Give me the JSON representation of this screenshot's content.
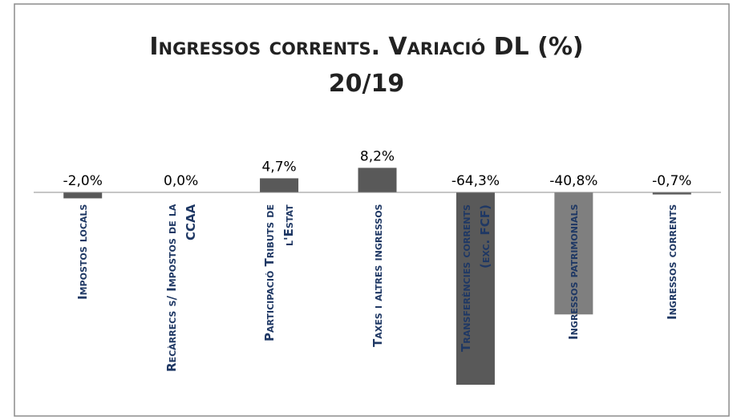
{
  "chart_data": {
    "type": "bar",
    "title": "Ingressos corrents. Variació DL (%) 20/19",
    "categories": [
      "Impostos locals",
      "Recàrrecs s/ Impostos de la CCAA",
      "Participació Tributs de l'Estat",
      "Taxes i altres ingressos",
      "Transferències corrents (exc. FCF)",
      "Ingressos patrimonials",
      "Ingressos corrents"
    ],
    "values": [
      -2.0,
      0.0,
      4.7,
      8.2,
      -64.3,
      -40.8,
      -0.7
    ],
    "value_labels": [
      "-2,0%",
      "0,0%",
      "4,7%",
      "8,2%",
      "-64,3%",
      "-40,8%",
      "-0,7%"
    ],
    "colors": [
      "#595959",
      "#595959",
      "#595959",
      "#595959",
      "#595959",
      "#7f7f7f",
      "#595959"
    ]
  }
}
